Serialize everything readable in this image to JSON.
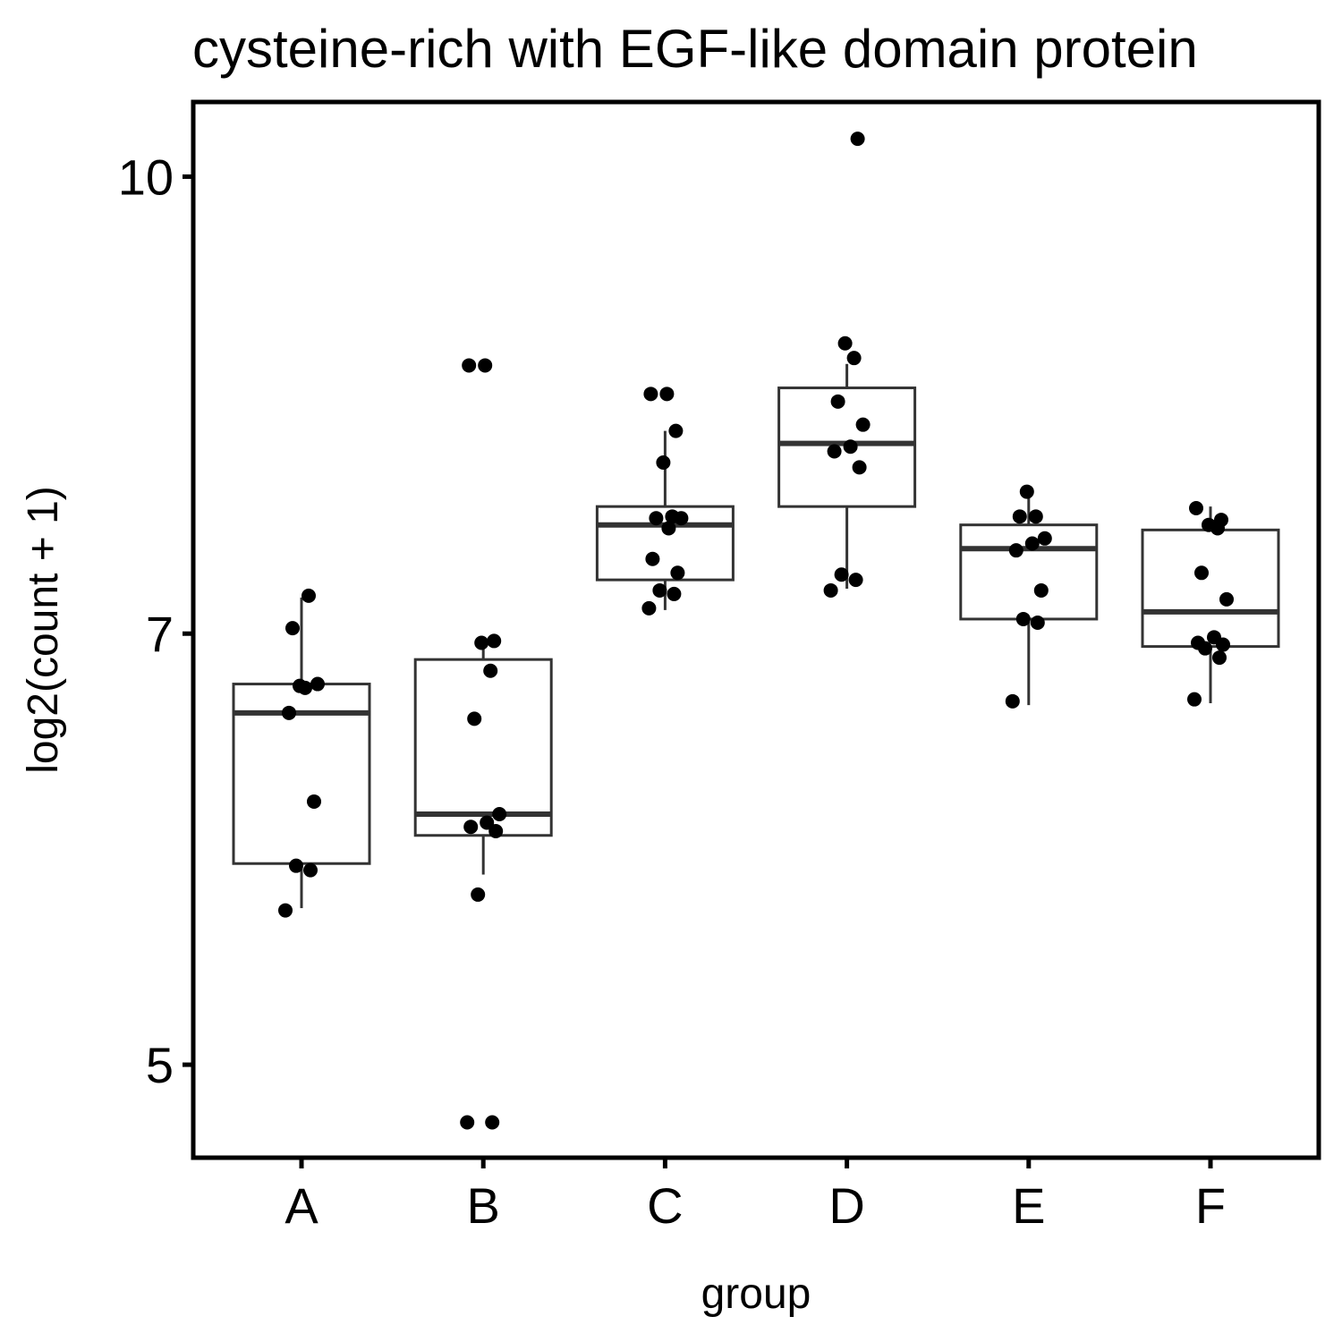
{
  "chart_data": {
    "type": "box",
    "title": "cysteine-rich with EGF-like domain protein",
    "xlabel": "group",
    "ylabel": "log2(count + 1)",
    "y_scale": "log",
    "ylim": [
      4.65,
      10.6
    ],
    "y_ticks": [
      5,
      7,
      10
    ],
    "y_tick_labels": [
      "5",
      "7",
      "10"
    ],
    "categories": [
      "A",
      "B",
      "C",
      "D",
      "E",
      "F"
    ],
    "boxes": [
      {
        "group": "A",
        "whisker_low": 5.65,
        "q1": 5.85,
        "median": 6.58,
        "q3": 6.73,
        "whisker_high": 7.2
      },
      {
        "group": "B",
        "whisker_low": 5.8,
        "q1": 5.98,
        "median": 6.08,
        "q3": 6.86,
        "whisker_high": 6.96
      },
      {
        "group": "C",
        "whisker_low": 7.13,
        "q1": 7.3,
        "median": 7.62,
        "q3": 7.73,
        "whisker_high": 8.2
      },
      {
        "group": "D",
        "whisker_low": 7.25,
        "q1": 7.73,
        "median": 8.12,
        "q3": 8.48,
        "whisker_high": 8.64
      },
      {
        "group": "E",
        "whisker_low": 6.62,
        "q1": 7.08,
        "median": 7.48,
        "q3": 7.62,
        "whisker_high": 7.82
      },
      {
        "group": "F",
        "whisker_low": 6.63,
        "q1": 6.93,
        "median": 7.12,
        "q3": 7.59,
        "whisker_high": 7.73
      }
    ],
    "points": [
      {
        "group": "A",
        "values": [
          5.64,
          5.82,
          5.84,
          6.14,
          6.58,
          6.71,
          6.73,
          7.03,
          7.21,
          6.72
        ]
      },
      {
        "group": "B",
        "values": [
          4.78,
          4.78,
          5.71,
          6.0,
          6.02,
          6.04,
          6.08,
          6.55,
          6.8,
          6.95,
          6.96,
          8.63,
          8.63
        ]
      },
      {
        "group": "C",
        "values": [
          7.14,
          7.22,
          7.24,
          7.34,
          7.42,
          7.6,
          7.66,
          7.66,
          7.67,
          8.0,
          8.2,
          8.44,
          8.44
        ]
      },
      {
        "group": "D",
        "values": [
          7.24,
          7.3,
          7.33,
          7.97,
          8.07,
          8.1,
          8.24,
          8.39,
          8.68,
          8.78,
          10.3
        ]
      },
      {
        "group": "E",
        "values": [
          6.64,
          7.06,
          7.08,
          7.24,
          7.47,
          7.51,
          7.54,
          7.67,
          7.67,
          7.82
        ]
      },
      {
        "group": "F",
        "values": [
          6.65,
          6.87,
          6.92,
          6.94,
          6.95,
          6.98,
          7.19,
          7.34,
          7.6,
          7.62,
          7.65,
          7.72
        ]
      }
    ],
    "grid": false,
    "legend": "none"
  }
}
